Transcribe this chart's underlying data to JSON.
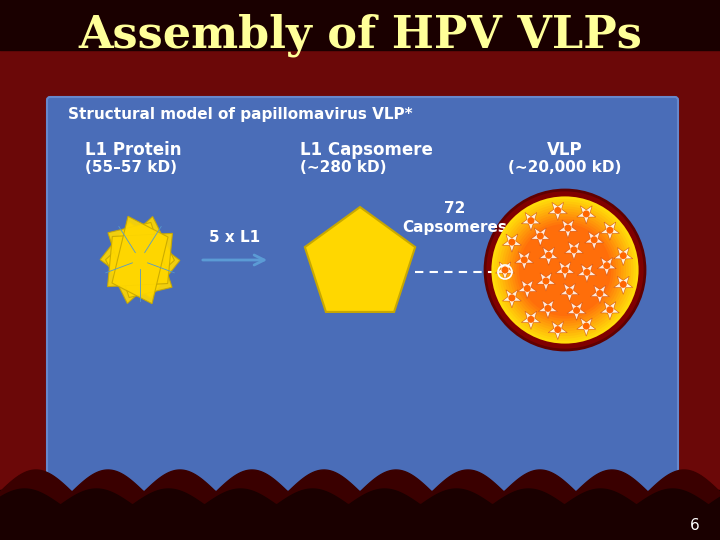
{
  "title": "Assembly of HPV VLPs",
  "title_color": "#FFFF99",
  "title_fontsize": 32,
  "subtitle": "Structural model of papillomavirus VLP*",
  "subtitle_fontsize": 11,
  "bg_outer_top": "#3A0000",
  "bg_outer": "#6B0808",
  "bg_panel": "#4A6DB8",
  "label1_line1": "L1 Protein",
  "label1_line2": "(55–57 kD)",
  "label2_line1": "L1 Capsomere",
  "label2_line2": "(∼280 kD)",
  "label3_line1": "VLP",
  "label3_line2": "(∼20,000 kD)",
  "arrow1_label": "5 x L1",
  "arrow2_label": "72\nCapsomeres",
  "text_color": "#FFFFFF",
  "gold_color": "#FFD700",
  "gold_edge": "#C8A800",
  "arrow_color": "#5B9BD5",
  "vlp_outer_color": "#800000",
  "page_number": "6"
}
